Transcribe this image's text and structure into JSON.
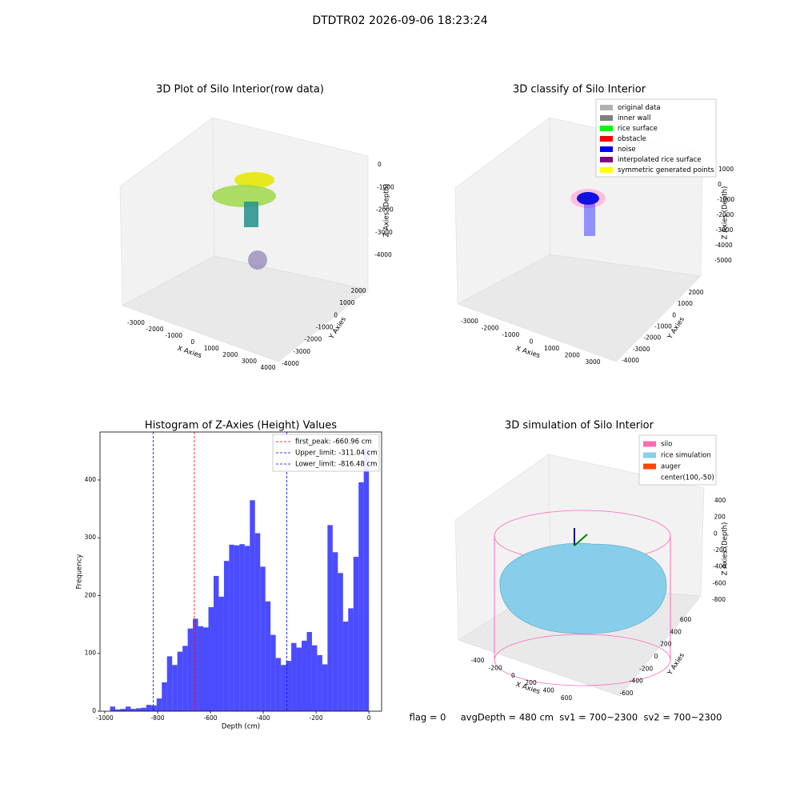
{
  "title": "DTDTR02 2026-09-06 18:23:24",
  "chart_data": [
    {
      "type": "scatter3d",
      "title": "3D Plot of Silo Interior(row data)",
      "xlabel": "X Axies",
      "ylabel": "Y Axies",
      "zlabel": "Z Axies (Depth)",
      "xticks": [
        -3000,
        -2000,
        -1000,
        0,
        1000,
        2000,
        3000,
        4000
      ],
      "yticks": [
        -4000,
        -3000,
        -2000,
        -1000,
        0,
        1000,
        2000
      ],
      "zticks": [
        0,
        -1000,
        -2000,
        -3000,
        -4000
      ]
    },
    {
      "type": "scatter3d",
      "title": "3D classify of Silo Interior",
      "xlabel": "X Axies",
      "ylabel": "Y Axies",
      "zlabel": "Z Axies (Depth)",
      "xticks": [
        -3000,
        -2000,
        -1000,
        0,
        1000,
        2000,
        3000
      ],
      "yticks": [
        -4000,
        -3000,
        -2000,
        -1000,
        0,
        1000,
        2000
      ],
      "zticks": [
        1000,
        0,
        -1000,
        -2000,
        -3000,
        -4000,
        -5000
      ],
      "legend_loc": "upper right",
      "legend": [
        {
          "name": "original data",
          "color": "#b0b0b0"
        },
        {
          "name": "inner wall",
          "color": "#808080"
        },
        {
          "name": "rice surface",
          "color": "#00ff00"
        },
        {
          "name": "obstacle",
          "color": "#ff0000"
        },
        {
          "name": "noise",
          "color": "#0000ff"
        },
        {
          "name": "interpolated rice surface",
          "color": "#800080"
        },
        {
          "name": "symmetric generated points",
          "color": "#ffff00"
        }
      ]
    },
    {
      "type": "histogram",
      "title": "Histogram of Z-Axies (Height) Values",
      "xlabel": "Depth (cm)",
      "ylabel": "Frequency",
      "color": "#0000ff",
      "bins": [
        -980,
        -960.4,
        -940.8,
        -921.2,
        -901.6,
        -882,
        -862.4,
        -842.8,
        -823.2,
        -803.6,
        -784,
        -764.4,
        -744.8,
        -725.2,
        -705.6,
        -686,
        -666.4,
        -646.8,
        -627.2,
        -607.6,
        -588,
        -568.4,
        -548.8,
        -529.2,
        -509.6,
        -490,
        -470.4,
        -450.8,
        -431.2,
        -411.6,
        -392,
        -372.4,
        -352.8,
        -333.2,
        -313.6,
        -294,
        -274.4,
        -254.8,
        -235.2,
        -215.6,
        -196,
        -176.4,
        -156.8,
        -137.2,
        -117.6,
        -98,
        -78.4,
        -58.8,
        -39.2,
        -19.6,
        0
      ],
      "counts": [
        8,
        3,
        4,
        8,
        4,
        5,
        6,
        11,
        10,
        22,
        50,
        95,
        80,
        103,
        113,
        143,
        160,
        147,
        145,
        180,
        234,
        198,
        260,
        288,
        287,
        289,
        286,
        365,
        308,
        250,
        190,
        132,
        92,
        80,
        87,
        118,
        110,
        122,
        137,
        114,
        97,
        81,
        322,
        275,
        239,
        155,
        178,
        267,
        396,
        455
      ],
      "xlim": [
        -1018,
        48
      ],
      "ylim": [
        0,
        483
      ],
      "xticks": [
        -1000,
        -800,
        -600,
        -400,
        -200,
        0
      ],
      "yticks": [
        0,
        100,
        200,
        300,
        400
      ],
      "legend_loc": "upper right",
      "vlines": [
        {
          "name": "first_peak: -660.96 cm",
          "value": -660.96,
          "color": "#ff0000"
        },
        {
          "name": "Upper_limit: -311.04 cm",
          "value": -311.04,
          "color": "#0000ff"
        },
        {
          "name": "Lower_limit: -816.48 cm",
          "value": -816.48,
          "color": "#0000ff"
        }
      ]
    },
    {
      "type": "surface3d",
      "title": "3D simulation of Silo Interior",
      "xlabel": "X Axies",
      "ylabel": "Y Axies",
      "zlabel": "Z Axies (Depth)",
      "xticks": [
        -400,
        -200,
        0,
        200,
        400,
        600
      ],
      "yticks": [
        -600,
        -400,
        -200,
        0,
        200,
        400,
        600
      ],
      "zticks": [
        400,
        200,
        0,
        -200,
        -400,
        -600,
        -800
      ],
      "legend_loc": "upper right",
      "legend": [
        {
          "name": "silo",
          "color": "#ff69b4"
        },
        {
          "name": "rice simulation",
          "color": "#87ceeb"
        },
        {
          "name": "auger",
          "color": "#ff4500"
        },
        {
          "name": "center(100,-50)"
        }
      ]
    }
  ],
  "footer": "flag = 0     avgDepth = 480 cm  sv1 = 700~2300  sv2 = 700~2300"
}
